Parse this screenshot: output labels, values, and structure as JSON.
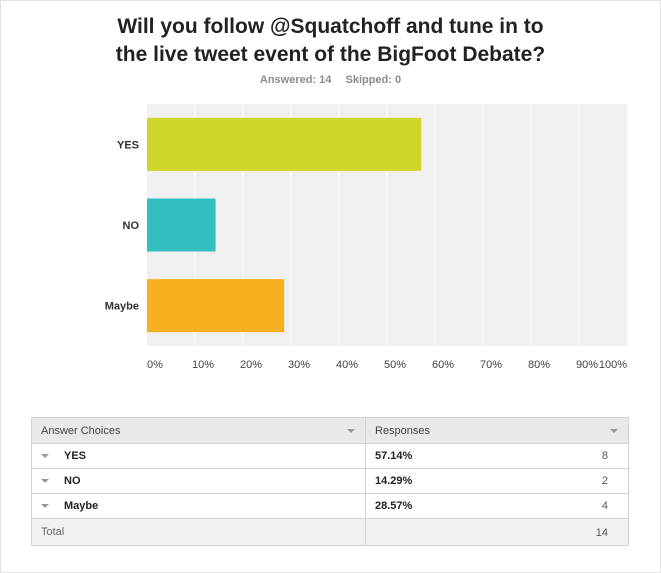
{
  "survey": {
    "title_line1": "Will you follow @Squatchoff and tune in to",
    "title_line2": "the live tweet event of the BigFoot Debate?",
    "answered": "Answered: 14",
    "skipped": "Skipped: 0"
  },
  "chart_data": {
    "type": "bar",
    "orientation": "horizontal",
    "title": "Will you follow @Squatchoff and tune in to the live tweet event of the BigFoot Debate?",
    "categories": [
      "YES",
      "NO",
      "Maybe"
    ],
    "values": [
      57.14,
      14.29,
      28.57
    ],
    "colors": [
      "#cdd629",
      "#33bfc2",
      "#f7b01f"
    ],
    "xlim": [
      0,
      100
    ],
    "x_ticks": [
      "0%",
      "10%",
      "20%",
      "30%",
      "40%",
      "50%",
      "60%",
      "70%",
      "80%",
      "90%",
      "100%"
    ],
    "grid": true,
    "legend": "none"
  },
  "table": {
    "headers": [
      "Answer Choices",
      "Responses"
    ],
    "rows": [
      {
        "choice": "YES",
        "percent": "57.14%",
        "count": "8"
      },
      {
        "choice": "NO",
        "percent": "14.29%",
        "count": "2"
      },
      {
        "choice": "Maybe",
        "percent": "28.57%",
        "count": "4"
      }
    ],
    "total_label": "Total",
    "total_count": "14"
  },
  "colors": {
    "plot_bg": "#f0f0f0",
    "grid": "#ffffff",
    "yes": "#cdd629",
    "no": "#33bfc2",
    "maybe": "#f7b01f"
  }
}
